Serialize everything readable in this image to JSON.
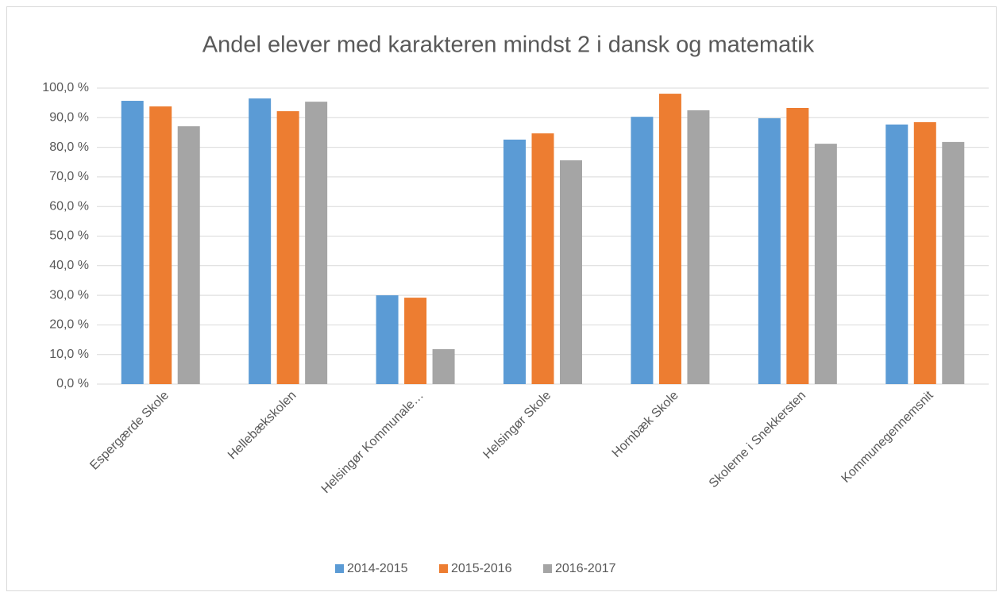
{
  "chart_data": {
    "type": "bar",
    "title": "Andel elever med karakteren mindst 2 i dansk og matematik",
    "categories": [
      "Espergærde Skole",
      "Hellebækskolen",
      "Helsingør Kommunale…",
      "Helsingør Skole",
      "Hornbæk Skole",
      "Skolerne i Snekkersten",
      "Kommunegennemsnit"
    ],
    "series": [
      {
        "name": "2014-2015",
        "color": "#5b9bd5",
        "values": [
          95.7,
          96.5,
          30.0,
          82.6,
          90.3,
          89.8,
          87.7
        ]
      },
      {
        "name": "2015-2016",
        "color": "#ed7d31",
        "values": [
          93.8,
          92.2,
          29.2,
          84.7,
          98.1,
          93.3,
          88.5
        ]
      },
      {
        "name": "2016-2017",
        "color": "#a5a5a5",
        "values": [
          87.1,
          95.4,
          11.8,
          75.6,
          92.5,
          81.2,
          81.8
        ]
      }
    ],
    "ylim": [
      0,
      100
    ],
    "yticks": [
      {
        "value": 0,
        "label": "0,0 %"
      },
      {
        "value": 10,
        "label": "10,0 %"
      },
      {
        "value": 20,
        "label": "20,0 %"
      },
      {
        "value": 30,
        "label": "30,0 %"
      },
      {
        "value": 40,
        "label": "40,0 %"
      },
      {
        "value": 50,
        "label": "50,0 %"
      },
      {
        "value": 60,
        "label": "60,0 %"
      },
      {
        "value": 70,
        "label": "70,0 %"
      },
      {
        "value": 80,
        "label": "80,0 %"
      },
      {
        "value": 90,
        "label": "90,0 %"
      },
      {
        "value": 100,
        "label": "100,0 %"
      }
    ],
    "grid": true,
    "legend": "bottom"
  }
}
